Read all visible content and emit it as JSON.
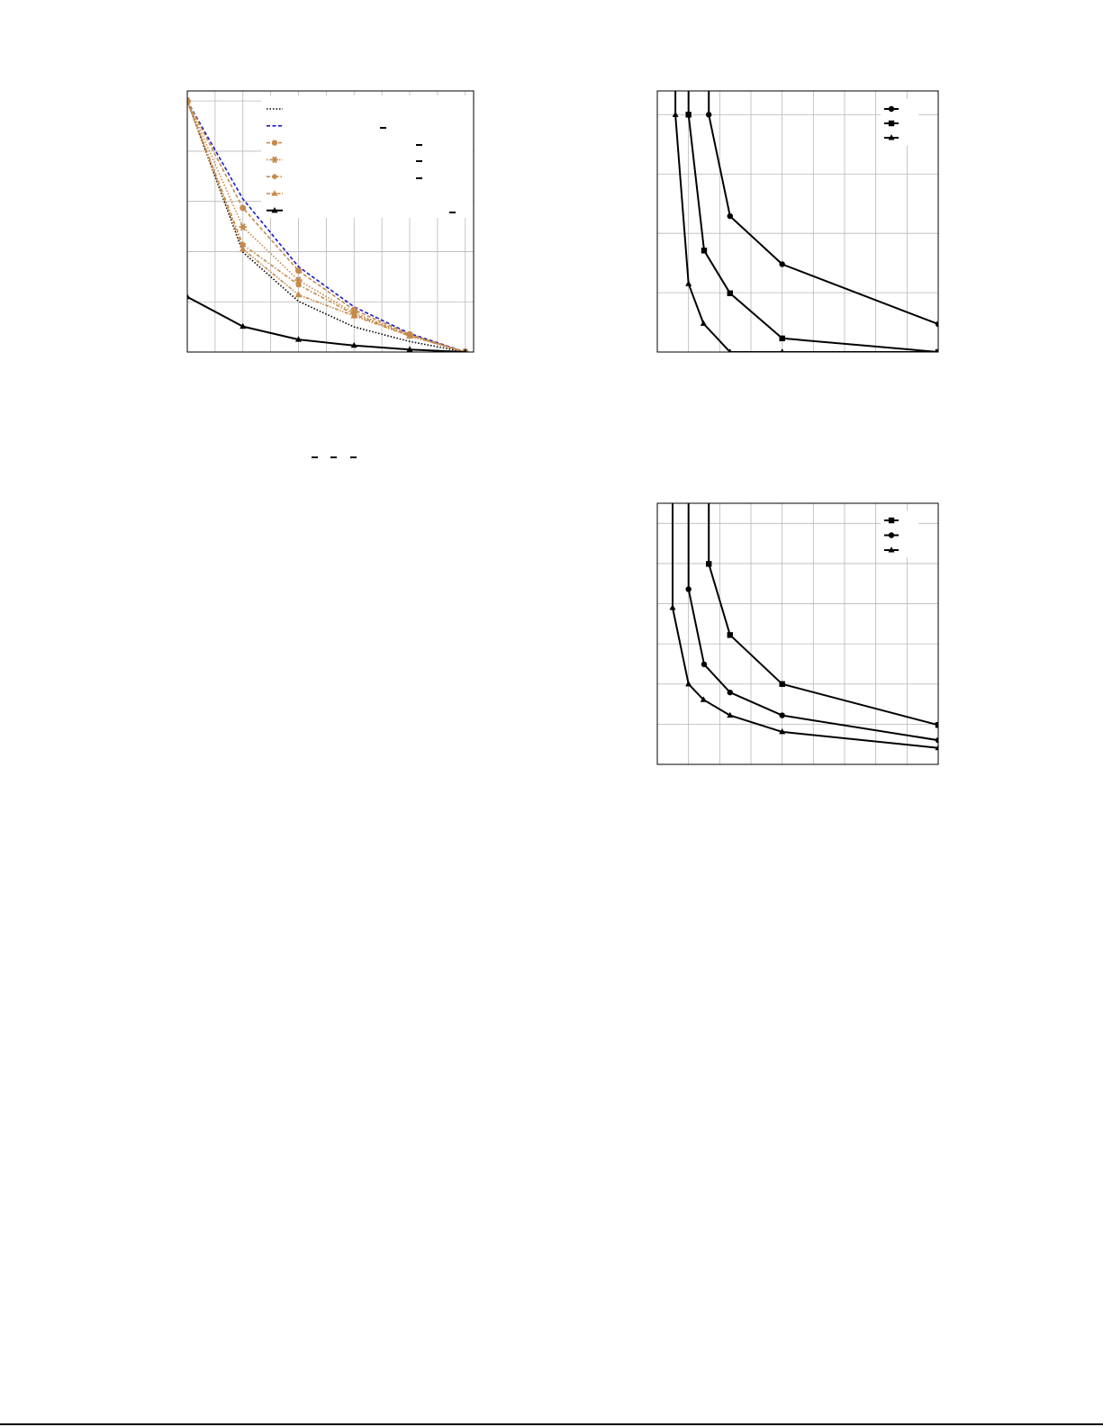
{
  "chart_data": [
    {
      "type": "line",
      "title": "",
      "xlabel": "",
      "ylabel": "",
      "xlim": [
        0,
        10.3
      ],
      "ylim": [
        0,
        5.2
      ],
      "grid": true,
      "legend": "top-right",
      "series": [
        {
          "color": "#000000",
          "dash": "dotted",
          "marker": "none",
          "x": [
            0,
            2,
            4,
            6,
            8,
            10
          ],
          "y": [
            5,
            1.99,
            1.01,
            0.5,
            0.21,
            0
          ]
        },
        {
          "color": "#1a1acc",
          "dash": "dashed",
          "marker": "none",
          "x": [
            0,
            2,
            4,
            6,
            8,
            10
          ],
          "y": [
            5,
            3.05,
            1.7,
            0.9,
            0.37,
            0
          ]
        },
        {
          "color": "#c58a4a",
          "dash": "dashed",
          "marker": "circle",
          "x": [
            0,
            2,
            4,
            6,
            8,
            10
          ],
          "y": [
            5,
            2.87,
            1.62,
            0.84,
            0.35,
            0
          ]
        },
        {
          "color": "#c58a4a",
          "dash": "dotted",
          "marker": "asterisk",
          "x": [
            0,
            2,
            4,
            6,
            8,
            10
          ],
          "y": [
            5,
            2.49,
            1.43,
            0.78,
            0.34,
            0
          ]
        },
        {
          "color": "#c58a4a",
          "dash": "dashdot",
          "marker": "pentagon",
          "x": [
            0,
            2,
            4,
            6,
            8,
            10
          ],
          "y": [
            5,
            2.14,
            1.34,
            0.75,
            0.33,
            0
          ]
        },
        {
          "color": "#c58a4a",
          "dash": "dashdotdot",
          "marker": "triangle",
          "x": [
            0,
            2,
            4,
            6,
            8,
            10
          ],
          "y": [
            5,
            2.05,
            1.14,
            0.72,
            0.32,
            0
          ]
        },
        {
          "color": "#000000",
          "dash": "solid",
          "marker": "triangle",
          "x": [
            0,
            2,
            4,
            6,
            8,
            10
          ],
          "y": [
            1.1,
            0.51,
            0.25,
            0.13,
            0.05,
            0
          ]
        }
      ]
    },
    {
      "type": "line",
      "title": "",
      "xlabel": "",
      "ylabel": "",
      "xlim": [
        0,
        9
      ],
      "ylim": [
        0,
        4.4
      ],
      "grid": true,
      "legend": "top-right",
      "series": [
        {
          "color": "#000000",
          "dash": "solid",
          "marker": "circle",
          "x": [
            1.65,
            1.65,
            2.33,
            4,
            9
          ],
          "y": [
            5,
            4.0,
            2.29,
            1.48,
            0.47
          ]
        },
        {
          "color": "#000000",
          "dash": "solid",
          "marker": "square",
          "x": [
            1,
            1,
            1.5,
            2.33,
            4,
            9
          ],
          "y": [
            5,
            4.0,
            1.71,
            0.99,
            0.23,
            0
          ]
        },
        {
          "color": "#000000",
          "dash": "solid",
          "marker": "triangle",
          "x": [
            0.58,
            0.58,
            1,
            1.48,
            2.33,
            4,
            9
          ],
          "y": [
            5,
            4.0,
            1.15,
            0.48,
            0,
            0,
            0
          ]
        }
      ]
    },
    {
      "type": "line",
      "title": "",
      "xlabel": "",
      "ylabel": "",
      "xlim": [
        0,
        9
      ],
      "ylim": [
        0,
        6.5
      ],
      "grid": true,
      "legend": "top-right",
      "series": [
        {
          "color": "#000000",
          "dash": "solid",
          "marker": "square",
          "x": [
            1.65,
            1.65,
            2.33,
            4,
            9
          ],
          "y": [
            7,
            4.99,
            3.22,
            2.0,
            0.98
          ]
        },
        {
          "color": "#000000",
          "dash": "solid",
          "marker": "circle",
          "x": [
            1,
            1,
            1.5,
            2.33,
            4,
            9
          ],
          "y": [
            7,
            4.36,
            2.49,
            1.79,
            1.22,
            0.6
          ]
        },
        {
          "color": "#000000",
          "dash": "solid",
          "marker": "triangle",
          "x": [
            0.49,
            0.49,
            1,
            1.48,
            2.33,
            4,
            9
          ],
          "y": [
            7,
            3.9,
            2.0,
            1.61,
            1.22,
            0.81,
            0.41
          ]
        }
      ]
    }
  ]
}
